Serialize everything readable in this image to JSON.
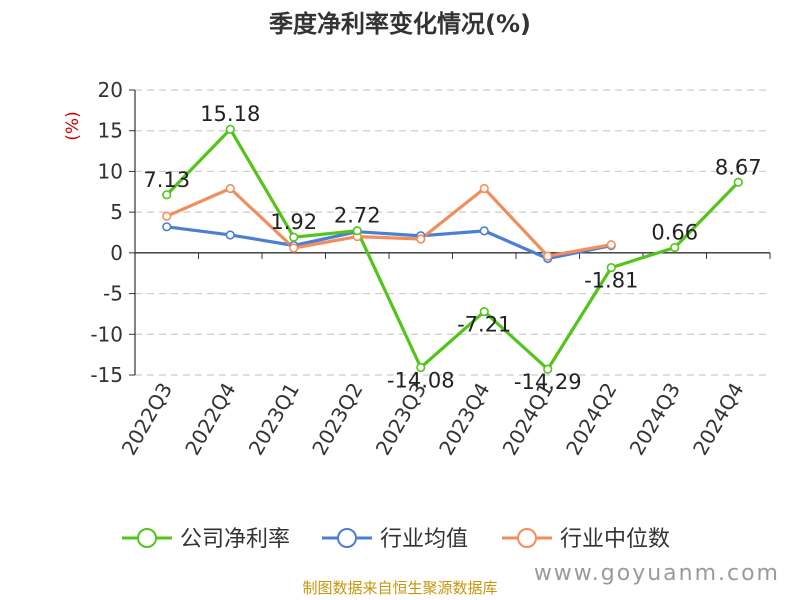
{
  "chart_data": {
    "type": "line",
    "title": "季度净利率变化情况(%)",
    "ylabel": "(%)",
    "categories": [
      "2022Q3",
      "2022Q4",
      "2023Q1",
      "2023Q2",
      "2023Q3",
      "2023Q4",
      "2024Q1",
      "2024Q2",
      "2024Q3",
      "2024Q4"
    ],
    "ylim": [
      -15,
      20
    ],
    "yticks": [
      20,
      15,
      10,
      5,
      0,
      -5,
      -10,
      -15
    ],
    "grid": true,
    "legend_position": "bottom",
    "series": [
      {
        "name": "公司净利率",
        "color": "#52c41a",
        "values": [
          7.13,
          15.18,
          1.92,
          2.72,
          -14.08,
          -7.21,
          -14.29,
          -1.81,
          0.66,
          8.67
        ],
        "labels": [
          "7.13",
          "15.18",
          "1.92",
          "2.72",
          "-14.08",
          "-7.21",
          "-14.29",
          "-1.81",
          "0.66",
          "8.67"
        ]
      },
      {
        "name": "行业均值",
        "color": "#4a7fd4",
        "values": [
          3.2,
          2.2,
          0.9,
          2.6,
          2.1,
          2.7,
          -0.7,
          0.9,
          null,
          null
        ]
      },
      {
        "name": "行业中位数",
        "color": "#f28e5b",
        "values": [
          4.5,
          7.9,
          0.6,
          2.0,
          1.7,
          7.9,
          -0.4,
          1.0,
          null,
          null
        ]
      }
    ]
  },
  "footer": {
    "source": "制图数据来自恒生聚源数据库",
    "watermark": "www.goyuanm.com"
  }
}
